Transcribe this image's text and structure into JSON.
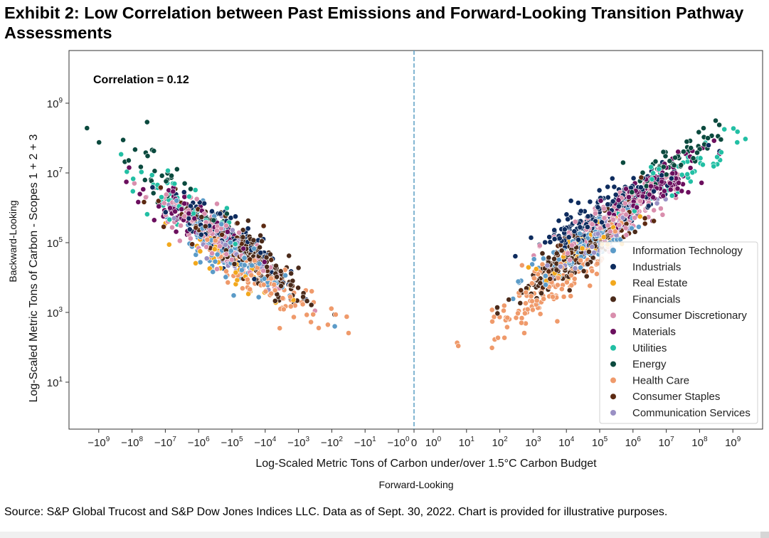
{
  "page": {
    "title": "Exhibit 2: Low Correlation between Past Emissions and Forward-Looking Transition Pathway Assessments",
    "source": "Source: S&P Global Trucost and S&P Dow Jones Indices LLC. Data as of Sept. 30, 2022. Chart is provided for illustrative purposes."
  },
  "chart_data": {
    "type": "scatter",
    "title": "Exhibit 2: Low Correlation between Past Emissions and Forward-Looking Transition Pathway Assessments",
    "xlabel": "Log-Scaled Metric Tons of Carbon under/over 1.5°C Carbon Budget",
    "xlabel_secondary": "Forward-Looking",
    "ylabel": "Log-Scaled Metric Tons of Carbon - Scopes 1 + 2 + 3",
    "ylabel_secondary": "Backward-Looking",
    "x_scale": "symlog",
    "y_scale": "log",
    "xlim": [
      -3000000000.0,
      3000000000.0
    ],
    "ylim": [
      0.5,
      30000000000.0
    ],
    "x_ticks": [
      {
        "value": -1000000000.0,
        "base": "−10",
        "exp": "9"
      },
      {
        "value": -100000000.0,
        "base": "−10",
        "exp": "8"
      },
      {
        "value": -10000000.0,
        "base": "−10",
        "exp": "7"
      },
      {
        "value": -1000000.0,
        "base": "−10",
        "exp": "6"
      },
      {
        "value": -100000.0,
        "base": "−10",
        "exp": "5"
      },
      {
        "value": -10000.0,
        "base": "−10",
        "exp": "4"
      },
      {
        "value": -1000.0,
        "base": "−10",
        "exp": "3"
      },
      {
        "value": -100.0,
        "base": "−10",
        "exp": "2"
      },
      {
        "value": -10.0,
        "base": "−10",
        "exp": "1"
      },
      {
        "value": -1,
        "base": "−10",
        "exp": "0"
      },
      {
        "value": 0,
        "base": "0",
        "exp": ""
      },
      {
        "value": 1,
        "base": "10",
        "exp": "0"
      },
      {
        "value": 10.0,
        "base": "10",
        "exp": "1"
      },
      {
        "value": 100.0,
        "base": "10",
        "exp": "2"
      },
      {
        "value": 1000.0,
        "base": "10",
        "exp": "3"
      },
      {
        "value": 10000.0,
        "base": "10",
        "exp": "4"
      },
      {
        "value": 100000.0,
        "base": "10",
        "exp": "5"
      },
      {
        "value": 1000000.0,
        "base": "10",
        "exp": "6"
      },
      {
        "value": 10000000.0,
        "base": "10",
        "exp": "7"
      },
      {
        "value": 100000000.0,
        "base": "10",
        "exp": "8"
      },
      {
        "value": 1000000000.0,
        "base": "10",
        "exp": "9"
      }
    ],
    "y_ticks": [
      {
        "value": 10.0,
        "base": "10",
        "exp": "1"
      },
      {
        "value": 1000.0,
        "base": "10",
        "exp": "3"
      },
      {
        "value": 100000.0,
        "base": "10",
        "exp": "5"
      },
      {
        "value": 10000000.0,
        "base": "10",
        "exp": "7"
      },
      {
        "value": 1000000000.0,
        "base": "10",
        "exp": "9"
      }
    ],
    "reference_line": {
      "axis": "x",
      "value": 0,
      "style": "dashed",
      "color": "#5a9ec4"
    },
    "annotations": [
      {
        "text": "Correlation = 0.12",
        "position": "top-left"
      }
    ],
    "correlation": 0.12,
    "grid": false,
    "legend": {
      "position": "lower-right",
      "entries": [
        {
          "name": "Information Technology",
          "color": "#5b9bc8"
        },
        {
          "name": "Industrials",
          "color": "#0e2c5e"
        },
        {
          "name": "Real Estate",
          "color": "#f2a81d"
        },
        {
          "name": "Financials",
          "color": "#4a2a1a"
        },
        {
          "name": "Consumer Discretionary",
          "color": "#d98ead"
        },
        {
          "name": "Materials",
          "color": "#6b0f5e"
        },
        {
          "name": "Utilities",
          "color": "#22bfa4"
        },
        {
          "name": "Energy",
          "color": "#0b4a3e"
        },
        {
          "name": "Health Care",
          "color": "#ef9a6b"
        },
        {
          "name": "Consumer Staples",
          "color": "#5c2a12"
        },
        {
          "name": "Communication Services",
          "color": "#9a90c4"
        }
      ]
    },
    "series": [
      {
        "name": "Information Technology",
        "color": "#5b9bc8",
        "clusters": [
          {
            "side": "neg",
            "x_log_center": 5.0,
            "y_log_center": 4.7,
            "x_spread": 0.9,
            "y_spread": 0.6,
            "n": 110
          },
          {
            "side": "pos",
            "x_log_center": 4.5,
            "y_log_center": 4.9,
            "x_spread": 0.9,
            "y_spread": 0.6,
            "n": 110
          }
        ]
      },
      {
        "name": "Industrials",
        "color": "#0e2c5e",
        "clusters": [
          {
            "side": "neg",
            "x_log_center": 5.3,
            "y_log_center": 5.3,
            "x_spread": 0.9,
            "y_spread": 0.6,
            "n": 130
          },
          {
            "side": "pos",
            "x_log_center": 5.2,
            "y_log_center": 5.9,
            "x_spread": 0.95,
            "y_spread": 0.55,
            "n": 200
          }
        ]
      },
      {
        "name": "Real Estate",
        "color": "#f2a81d",
        "clusters": [
          {
            "side": "neg",
            "x_log_center": 5.3,
            "y_log_center": 4.5,
            "x_spread": 0.7,
            "y_spread": 0.5,
            "n": 40
          },
          {
            "side": "pos",
            "x_log_center": 4.5,
            "y_log_center": 4.8,
            "x_spread": 0.8,
            "y_spread": 0.5,
            "n": 45
          }
        ]
      },
      {
        "name": "Financials",
        "color": "#4a2a1a",
        "clusters": [
          {
            "side": "neg",
            "x_log_center": 4.4,
            "y_log_center": 4.6,
            "x_spread": 0.9,
            "y_spread": 0.6,
            "n": 150
          },
          {
            "side": "pos",
            "x_log_center": 3.9,
            "y_log_center": 4.4,
            "x_spread": 0.8,
            "y_spread": 0.55,
            "n": 130
          }
        ]
      },
      {
        "name": "Consumer Discretionary",
        "color": "#d98ead",
        "clusters": [
          {
            "side": "neg",
            "x_log_center": 5.5,
            "y_log_center": 5.2,
            "x_spread": 0.9,
            "y_spread": 0.6,
            "n": 110
          },
          {
            "side": "pos",
            "x_log_center": 5.3,
            "y_log_center": 5.6,
            "x_spread": 0.95,
            "y_spread": 0.55,
            "n": 150
          }
        ]
      },
      {
        "name": "Materials",
        "color": "#6b0f5e",
        "clusters": [
          {
            "side": "neg",
            "x_log_center": 6.0,
            "y_log_center": 5.6,
            "x_spread": 0.9,
            "y_spread": 0.6,
            "n": 90
          },
          {
            "side": "pos",
            "x_log_center": 6.5,
            "y_log_center": 6.5,
            "x_spread": 0.8,
            "y_spread": 0.5,
            "n": 140
          }
        ]
      },
      {
        "name": "Utilities",
        "color": "#22bfa4",
        "clusters": [
          {
            "side": "neg",
            "x_log_center": 7.0,
            "y_log_center": 6.5,
            "x_spread": 1.0,
            "y_spread": 0.7,
            "n": 40
          },
          {
            "side": "pos",
            "x_log_center": 7.4,
            "y_log_center": 7.0,
            "x_spread": 0.8,
            "y_spread": 0.5,
            "n": 50
          }
        ]
      },
      {
        "name": "Energy",
        "color": "#0b4a3e",
        "clusters": [
          {
            "side": "neg",
            "x_log_center": 7.2,
            "y_log_center": 6.9,
            "x_spread": 1.0,
            "y_spread": 0.7,
            "n": 40
          },
          {
            "side": "pos",
            "x_log_center": 7.4,
            "y_log_center": 7.4,
            "x_spread": 0.8,
            "y_spread": 0.5,
            "n": 60
          }
        ]
      },
      {
        "name": "Health Care",
        "color": "#ef9a6b",
        "clusters": [
          {
            "side": "neg",
            "x_log_center": 4.0,
            "y_log_center": 3.9,
            "x_spread": 1.0,
            "y_spread": 0.6,
            "n": 90
          },
          {
            "side": "pos",
            "x_log_center": 3.4,
            "y_log_center": 3.6,
            "x_spread": 1.0,
            "y_spread": 0.7,
            "n": 130
          }
        ]
      },
      {
        "name": "Consumer Staples",
        "color": "#5c2a12",
        "clusters": [
          {
            "side": "neg",
            "x_log_center": 5.2,
            "y_log_center": 5.0,
            "x_spread": 0.9,
            "y_spread": 0.6,
            "n": 70
          },
          {
            "side": "pos",
            "x_log_center": 5.0,
            "y_log_center": 5.3,
            "x_spread": 0.9,
            "y_spread": 0.55,
            "n": 70
          }
        ]
      },
      {
        "name": "Communication Services",
        "color": "#9a90c4",
        "clusters": [
          {
            "side": "neg",
            "x_log_center": 5.2,
            "y_log_center": 4.8,
            "x_spread": 0.8,
            "y_spread": 0.6,
            "n": 40
          },
          {
            "side": "pos",
            "x_log_center": 4.9,
            "y_log_center": 5.0,
            "x_spread": 0.8,
            "y_spread": 0.5,
            "n": 45
          }
        ]
      }
    ]
  }
}
